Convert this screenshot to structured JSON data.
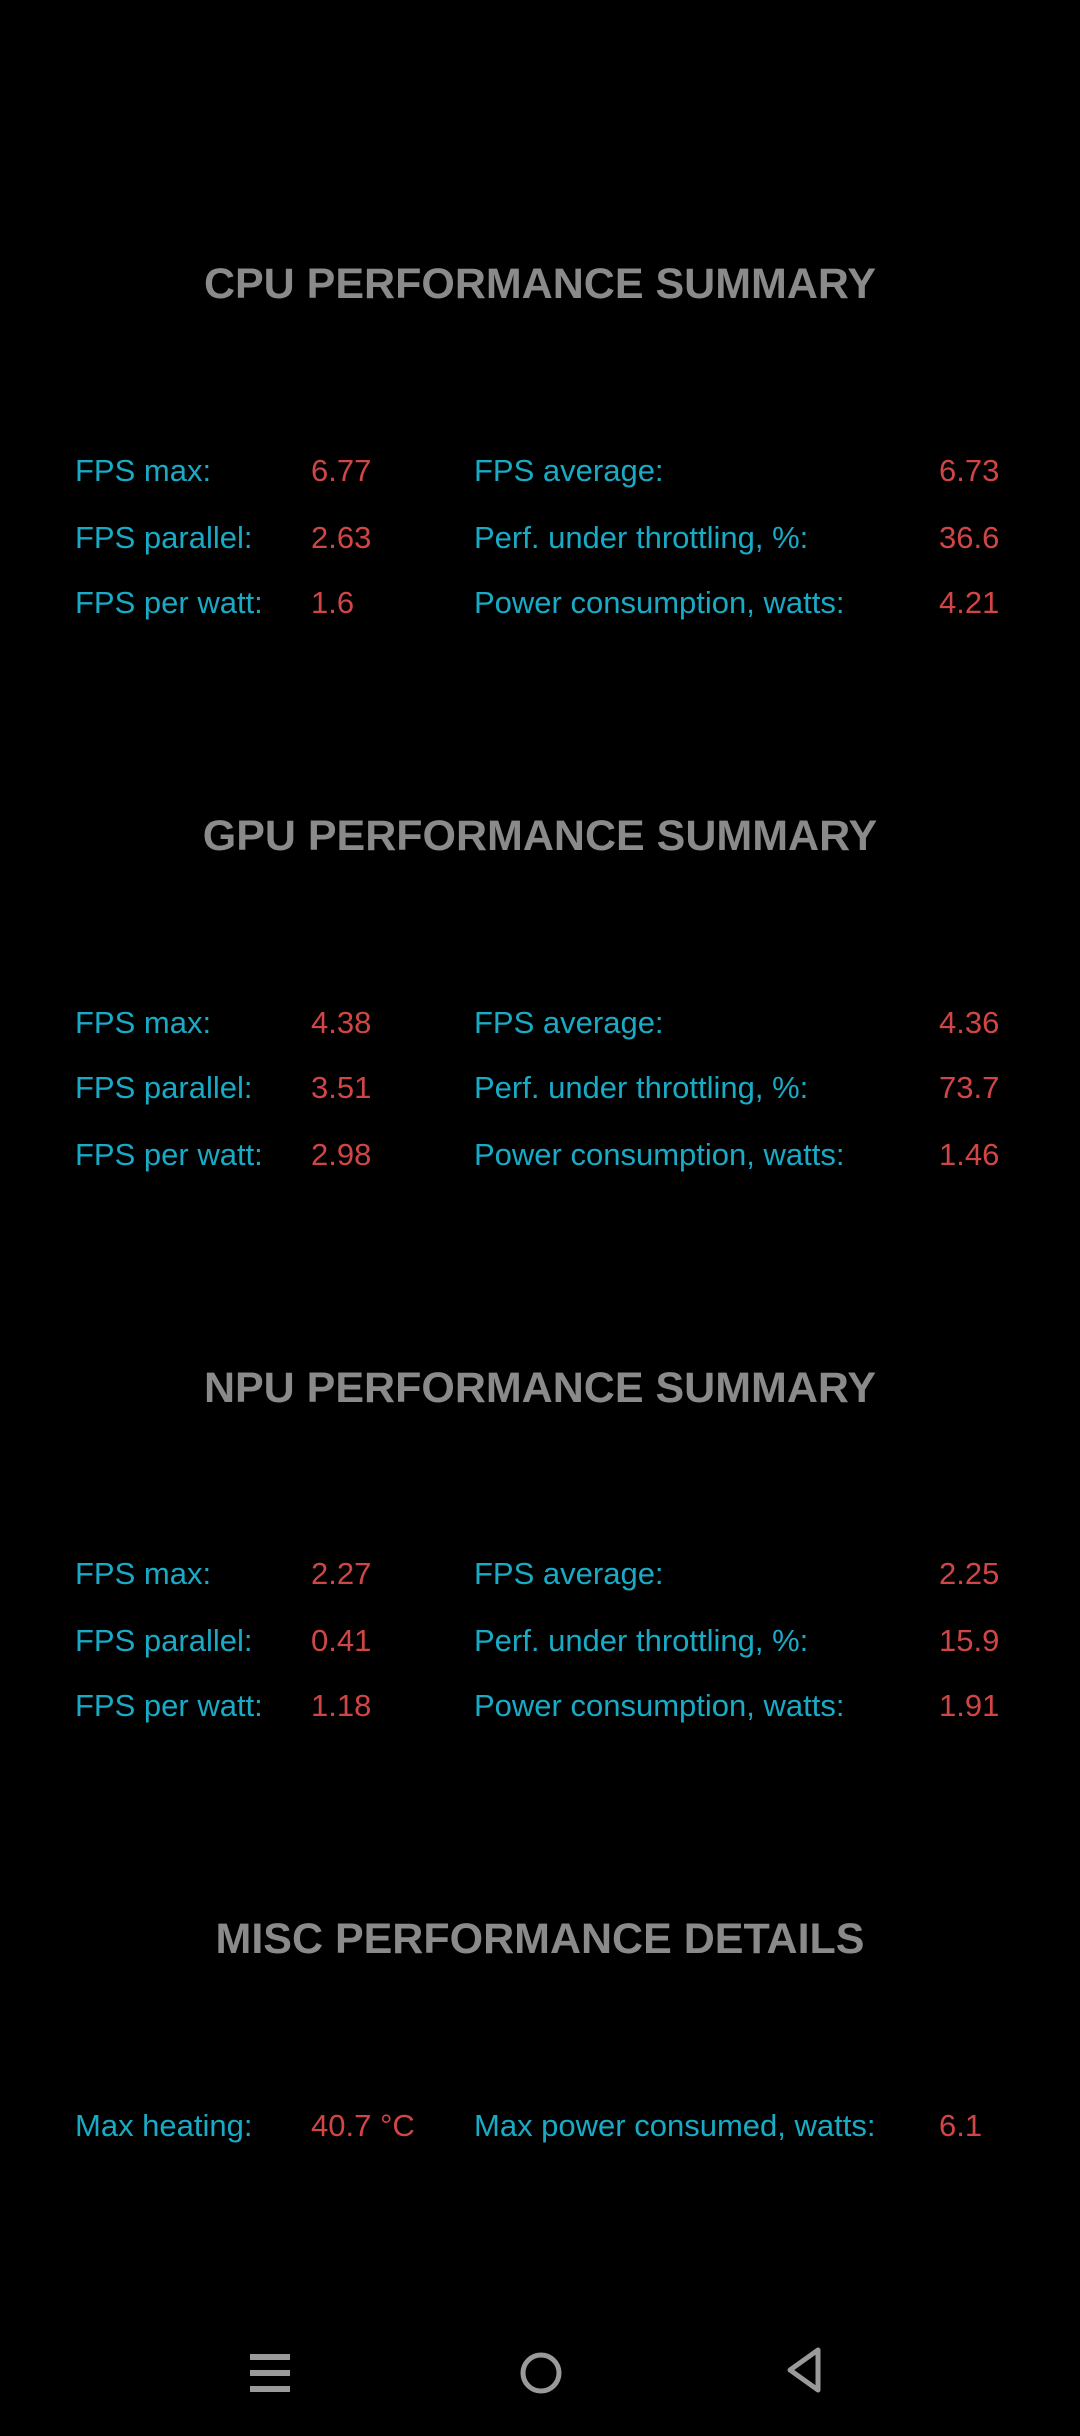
{
  "sections": [
    {
      "title": "CPU PERFORMANCE SUMMARY",
      "rows": [
        {
          "l1": "FPS max:",
          "v1": "6.77",
          "l2": "FPS average:",
          "v2": "6.73"
        },
        {
          "l1": "FPS parallel:",
          "v1": "2.63",
          "l2": "Perf. under throttling, %:",
          "v2": "36.6"
        },
        {
          "l1": "FPS per watt:",
          "v1": "1.6",
          "l2": "Power consumption, watts:",
          "v2": "4.21"
        }
      ]
    },
    {
      "title": "GPU PERFORMANCE SUMMARY",
      "rows": [
        {
          "l1": "FPS max:",
          "v1": "4.38",
          "l2": "FPS average:",
          "v2": "4.36"
        },
        {
          "l1": "FPS parallel:",
          "v1": "3.51",
          "l2": "Perf. under throttling, %:",
          "v2": "73.7"
        },
        {
          "l1": "FPS per watt:",
          "v1": "2.98",
          "l2": "Power consumption, watts:",
          "v2": "1.46"
        }
      ]
    },
    {
      "title": "NPU PERFORMANCE SUMMARY",
      "rows": [
        {
          "l1": "FPS max:",
          "v1": "2.27",
          "l2": "FPS average:",
          "v2": "2.25"
        },
        {
          "l1": "FPS parallel:",
          "v1": "0.41",
          "l2": "Perf. under throttling, %:",
          "v2": "15.9"
        },
        {
          "l1": "FPS per watt:",
          "v1": "1.18",
          "l2": "Power consumption, watts:",
          "v2": "1.91"
        }
      ]
    },
    {
      "title": "MISC PERFORMANCE DETAILS",
      "rows": [
        {
          "l1": "Max heating:",
          "v1": "40.7 °C",
          "l2": "Max power consumed, watts:",
          "v2": "6.1"
        }
      ]
    }
  ],
  "colors": {
    "label": "#19aac6",
    "value": "#d04545",
    "title": "#8a8a8a",
    "background": "#000000"
  },
  "nav": {
    "icons": [
      "recent-apps-icon",
      "home-icon",
      "back-icon"
    ]
  }
}
